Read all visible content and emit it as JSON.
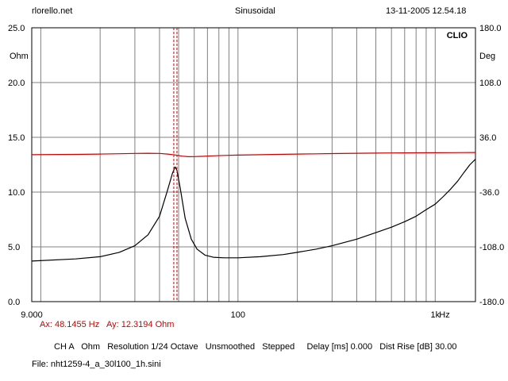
{
  "header": {
    "left": "rlorello.net",
    "center": "Sinusoidal",
    "right": "13-11-2005 12.54.18"
  },
  "brand": "CLIO",
  "colors": {
    "magnitude": "#000000",
    "phase": "#cc0000",
    "cursor": "#cc0000",
    "grid": "#808080",
    "background": "#ffffff"
  },
  "chart_data": {
    "type": "line",
    "x_scale": "log",
    "xlim": [
      9,
      1600
    ],
    "x_ticks": [
      {
        "v": 9,
        "label": "9.000"
      },
      {
        "v": 100,
        "label": "100"
      },
      {
        "v": 1000,
        "label": "1k"
      }
    ],
    "x_unit": "Hz",
    "left_axis": {
      "unit": "Ohm",
      "ylim": [
        0,
        25
      ],
      "ticks": [
        {
          "v": 25,
          "label": "25.0"
        },
        {
          "v": 20,
          "label": "20.0"
        },
        {
          "v": 15,
          "label": "15.0"
        },
        {
          "v": 10,
          "label": "10.0"
        },
        {
          "v": 5,
          "label": "5.0"
        },
        {
          "v": 0,
          "label": "0.0"
        }
      ]
    },
    "right_axis": {
      "unit": "Deg",
      "ylim": [
        -180,
        180
      ],
      "ticks": [
        {
          "v": 180,
          "label": "180.0"
        },
        {
          "v": 108,
          "label": "108.0"
        },
        {
          "v": 36,
          "label": "36.0"
        },
        {
          "v": -36,
          "label": "-36.0"
        },
        {
          "v": -108,
          "label": "-108.0"
        },
        {
          "v": -180,
          "label": "-180.0"
        }
      ]
    },
    "grid": true,
    "cursor_x": 48.1455,
    "series": [
      {
        "axis": "left",
        "color": "#000000",
        "points": [
          [
            9,
            3.7
          ],
          [
            15,
            3.9
          ],
          [
            20,
            4.1
          ],
          [
            25,
            4.5
          ],
          [
            30,
            5.1
          ],
          [
            35,
            6.1
          ],
          [
            40,
            7.8
          ],
          [
            44,
            10.2
          ],
          [
            46.5,
            11.7
          ],
          [
            48,
            12.3
          ],
          [
            49,
            12.0
          ],
          [
            51,
            10.3
          ],
          [
            54,
            7.6
          ],
          [
            58,
            5.7
          ],
          [
            62,
            4.8
          ],
          [
            68,
            4.25
          ],
          [
            75,
            4.05
          ],
          [
            85,
            4.0
          ],
          [
            100,
            4.0
          ],
          [
            130,
            4.1
          ],
          [
            170,
            4.3
          ],
          [
            200,
            4.5
          ],
          [
            250,
            4.8
          ],
          [
            300,
            5.1
          ],
          [
            400,
            5.7
          ],
          [
            500,
            6.3
          ],
          [
            600,
            6.8
          ],
          [
            700,
            7.3
          ],
          [
            800,
            7.8
          ],
          [
            900,
            8.4
          ],
          [
            1000,
            8.9
          ],
          [
            1100,
            9.6
          ],
          [
            1200,
            10.3
          ],
          [
            1300,
            11.0
          ],
          [
            1400,
            11.8
          ],
          [
            1500,
            12.5
          ],
          [
            1600,
            13.0
          ]
        ]
      },
      {
        "axis": "right",
        "color": "#cc0000",
        "points": [
          [
            9,
            13.2
          ],
          [
            15,
            13.6
          ],
          [
            20,
            14.0
          ],
          [
            25,
            14.4
          ],
          [
            30,
            14.8
          ],
          [
            35,
            15.0
          ],
          [
            40,
            14.8
          ],
          [
            44,
            14.0
          ],
          [
            48,
            12.8
          ],
          [
            52,
            11.3
          ],
          [
            56,
            10.5
          ],
          [
            60,
            10.6
          ],
          [
            65,
            11.0
          ],
          [
            75,
            11.7
          ],
          [
            85,
            12.2
          ],
          [
            100,
            12.6
          ],
          [
            130,
            13.2
          ],
          [
            170,
            13.7
          ],
          [
            200,
            14.0
          ],
          [
            250,
            14.3
          ],
          [
            300,
            14.6
          ],
          [
            400,
            15.0
          ],
          [
            500,
            15.2
          ],
          [
            600,
            15.4
          ],
          [
            700,
            15.6
          ],
          [
            800,
            15.7
          ],
          [
            1000,
            15.8
          ],
          [
            1200,
            15.9
          ],
          [
            1400,
            16.0
          ],
          [
            1600,
            16.1
          ]
        ]
      }
    ]
  },
  "cursor_readout": {
    "ax": "Ax: 48.1455 Hz",
    "ay": "Ay: 12.3194 Ohm"
  },
  "status_line": "CH A   Ohm   Resolution 1/24 Octave   Unsmoothed   Stepped     Delay [ms] 0.000   Dist Rise [dB] 30.00",
  "file_line": "File: nht1259-4_a_30l100_1h.sini"
}
